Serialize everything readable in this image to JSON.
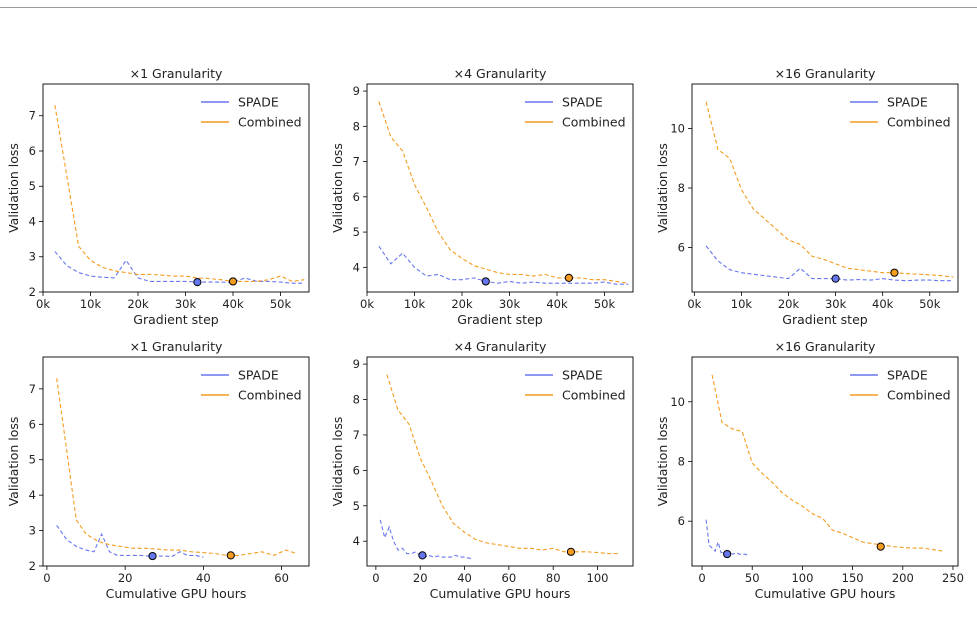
{
  "colors": {
    "spade": "#6677ee",
    "combined": "#f39c1f"
  },
  "chart_data": [
    {
      "type": "line",
      "title": "×1 Granularity",
      "xlabel": "Gradient step",
      "ylabel": "Validation loss",
      "xlim": [
        0,
        56000
      ],
      "ylim": [
        2,
        7.9
      ],
      "xticks": [
        0,
        10000,
        20000,
        30000,
        40000,
        50000
      ],
      "xtick_labels": [
        "0k",
        "10k",
        "20k",
        "30k",
        "40k",
        "50k"
      ],
      "yticks": [
        2,
        3,
        4,
        5,
        6,
        7
      ],
      "ytick_labels": [
        "2",
        "3",
        "4",
        "5",
        "6",
        "7"
      ],
      "legend": "top-right",
      "series": [
        {
          "name": "SPADE",
          "color": "#6677ee",
          "x": [
            2500,
            5000,
            7500,
            10000,
            12500,
            15000,
            17500,
            20000,
            22500,
            25000,
            27500,
            30000,
            32500,
            35000,
            37500,
            40000,
            42500,
            45000,
            47500,
            50000,
            52500,
            55000
          ],
          "y": [
            3.15,
            2.75,
            2.55,
            2.45,
            2.42,
            2.4,
            2.9,
            2.4,
            2.3,
            2.3,
            2.3,
            2.3,
            2.28,
            2.28,
            2.28,
            2.27,
            2.4,
            2.3,
            2.3,
            2.28,
            2.25,
            2.25
          ],
          "marker": {
            "x": 32500,
            "y": 2.28
          }
        },
        {
          "name": "Combined",
          "color": "#f39c1f",
          "x": [
            2500,
            5000,
            7500,
            10000,
            12500,
            15000,
            17500,
            20000,
            22500,
            25000,
            27500,
            30000,
            32500,
            35000,
            37500,
            40000,
            42500,
            45000,
            47500,
            50000,
            52500,
            55000
          ],
          "y": [
            7.3,
            5.3,
            3.3,
            2.9,
            2.7,
            2.6,
            2.55,
            2.5,
            2.5,
            2.48,
            2.45,
            2.45,
            2.4,
            2.38,
            2.35,
            2.3,
            2.3,
            2.3,
            2.35,
            2.45,
            2.3,
            2.35
          ],
          "marker": {
            "x": 40000,
            "y": 2.3
          }
        }
      ]
    },
    {
      "type": "line",
      "title": "×4 Granularity",
      "xlabel": "Gradient step",
      "ylabel": "Validation loss",
      "xlim": [
        0,
        56000
      ],
      "ylim": [
        3.3,
        9.2
      ],
      "xticks": [
        0,
        10000,
        20000,
        30000,
        40000,
        50000
      ],
      "xtick_labels": [
        "0k",
        "10k",
        "20k",
        "30k",
        "40k",
        "50k"
      ],
      "yticks": [
        4,
        5,
        6,
        7,
        8,
        9
      ],
      "ytick_labels": [
        "4",
        "5",
        "6",
        "7",
        "8",
        "9"
      ],
      "legend": "top-right",
      "series": [
        {
          "name": "SPADE",
          "color": "#6677ee",
          "x": [
            2500,
            5000,
            7500,
            10000,
            12500,
            15000,
            17500,
            20000,
            22500,
            25000,
            27500,
            30000,
            32500,
            35000,
            37500,
            40000,
            42500,
            45000,
            47500,
            50000,
            52500,
            55000
          ],
          "y": [
            4.6,
            4.1,
            4.4,
            4.0,
            3.75,
            3.8,
            3.65,
            3.65,
            3.7,
            3.6,
            3.55,
            3.6,
            3.55,
            3.58,
            3.55,
            3.55,
            3.55,
            3.55,
            3.55,
            3.58,
            3.52,
            3.52
          ],
          "marker": {
            "x": 25000,
            "y": 3.6
          }
        },
        {
          "name": "Combined",
          "color": "#f39c1f",
          "x": [
            2500,
            5000,
            7500,
            10000,
            12500,
            15000,
            17500,
            20000,
            22500,
            25000,
            27500,
            30000,
            32500,
            35000,
            37500,
            40000,
            42500,
            45000,
            47500,
            50000,
            52500,
            55000
          ],
          "y": [
            8.7,
            7.7,
            7.3,
            6.35,
            5.7,
            5.0,
            4.5,
            4.25,
            4.05,
            3.95,
            3.85,
            3.8,
            3.8,
            3.75,
            3.8,
            3.7,
            3.7,
            3.7,
            3.65,
            3.65,
            3.6,
            3.55
          ],
          "marker": {
            "x": 42500,
            "y": 3.7
          }
        }
      ]
    },
    {
      "type": "line",
      "title": "×16 Granularity",
      "xlabel": "Gradient step",
      "ylabel": "Validation loss",
      "xlim": [
        -500,
        56000
      ],
      "ylim": [
        4.5,
        11.5
      ],
      "xticks": [
        0,
        10000,
        20000,
        30000,
        40000,
        50000
      ],
      "xtick_labels": [
        "0k",
        "10k",
        "20k",
        "30k",
        "40k",
        "50k"
      ],
      "yticks": [
        6,
        8,
        10
      ],
      "ytick_labels": [
        "6",
        "8",
        "10"
      ],
      "legend": "top-right",
      "series": [
        {
          "name": "SPADE",
          "color": "#6677ee",
          "x": [
            2500,
            5000,
            7500,
            10000,
            12500,
            15000,
            17500,
            20000,
            22500,
            25000,
            27500,
            30000,
            32500,
            35000,
            37500,
            40000,
            42500,
            45000,
            47500,
            50000,
            52500,
            55000
          ],
          "y": [
            6.05,
            5.55,
            5.25,
            5.15,
            5.1,
            5.05,
            5.0,
            4.95,
            5.3,
            4.95,
            4.95,
            4.95,
            4.9,
            4.92,
            4.9,
            4.95,
            4.9,
            4.88,
            4.9,
            4.9,
            4.88,
            4.88
          ],
          "marker": {
            "x": 30000,
            "y": 4.95
          }
        },
        {
          "name": "Combined",
          "color": "#f39c1f",
          "x": [
            2500,
            5000,
            7500,
            10000,
            12500,
            15000,
            17500,
            20000,
            22500,
            25000,
            27500,
            30000,
            32500,
            35000,
            37500,
            40000,
            42500,
            45000,
            47500,
            50000,
            52500,
            55000
          ],
          "y": [
            10.9,
            9.3,
            9.0,
            7.95,
            7.3,
            6.95,
            6.6,
            6.25,
            6.1,
            5.7,
            5.6,
            5.45,
            5.3,
            5.25,
            5.2,
            5.15,
            5.15,
            5.12,
            5.1,
            5.08,
            5.05,
            5.0
          ],
          "marker": {
            "x": 42500,
            "y": 5.15
          }
        }
      ]
    },
    {
      "type": "line",
      "title": "×1 Granularity",
      "xlabel": "Cumulative GPU hours",
      "ylabel": "Validation loss",
      "xlim": [
        -1,
        67
      ],
      "ylim": [
        2,
        7.9
      ],
      "xticks": [
        0,
        20,
        40,
        60
      ],
      "xtick_labels": [
        "0",
        "20",
        "40",
        "60"
      ],
      "yticks": [
        2,
        3,
        4,
        5,
        6,
        7
      ],
      "ytick_labels": [
        "2",
        "3",
        "4",
        "5",
        "6",
        "7"
      ],
      "legend": "top-right",
      "series": [
        {
          "name": "SPADE",
          "color": "#6677ee",
          "x": [
            2.5,
            5,
            7.5,
            10,
            12,
            14,
            16,
            18,
            20,
            22,
            24,
            26,
            28,
            30,
            32,
            34,
            36,
            38,
            40
          ],
          "y": [
            3.15,
            2.75,
            2.55,
            2.45,
            2.4,
            2.9,
            2.4,
            2.3,
            2.3,
            2.3,
            2.3,
            2.28,
            2.28,
            2.28,
            2.27,
            2.4,
            2.3,
            2.3,
            2.25
          ],
          "marker": {
            "x": 27,
            "y": 2.28
          }
        },
        {
          "name": "Combined",
          "color": "#f39c1f",
          "x": [
            2.5,
            5,
            7.5,
            10,
            13,
            16,
            19,
            22,
            25,
            28,
            31,
            34,
            37,
            40,
            43,
            46,
            49,
            52,
            55,
            58,
            61,
            64
          ],
          "y": [
            7.3,
            5.3,
            3.3,
            2.9,
            2.7,
            2.6,
            2.55,
            2.5,
            2.5,
            2.48,
            2.45,
            2.45,
            2.4,
            2.38,
            2.35,
            2.3,
            2.3,
            2.35,
            2.4,
            2.3,
            2.45,
            2.35
          ],
          "marker": {
            "x": 47,
            "y": 2.3
          }
        }
      ]
    },
    {
      "type": "line",
      "title": "×4 Granularity",
      "xlabel": "Cumulative GPU hours",
      "ylabel": "Validation loss",
      "xlim": [
        -4,
        116
      ],
      "ylim": [
        3.3,
        9.2
      ],
      "xticks": [
        0,
        20,
        40,
        60,
        80,
        100
      ],
      "xtick_labels": [
        "0",
        "20",
        "40",
        "60",
        "80",
        "100"
      ],
      "yticks": [
        4,
        5,
        6,
        7,
        8,
        9
      ],
      "ytick_labels": [
        "4",
        "5",
        "6",
        "7",
        "8",
        "9"
      ],
      "legend": "top-right",
      "series": [
        {
          "name": "SPADE",
          "color": "#6677ee",
          "x": [
            2,
            4,
            6,
            8,
            10,
            12,
            14,
            16,
            18,
            20,
            22,
            24,
            26,
            28,
            30,
            32,
            34,
            36,
            38,
            40,
            42,
            44
          ],
          "y": [
            4.6,
            4.1,
            4.4,
            4.0,
            3.75,
            3.8,
            3.65,
            3.65,
            3.7,
            3.6,
            3.55,
            3.6,
            3.55,
            3.58,
            3.55,
            3.55,
            3.55,
            3.6,
            3.55,
            3.55,
            3.52,
            3.52
          ],
          "marker": {
            "x": 21,
            "y": 3.6
          }
        },
        {
          "name": "Combined",
          "color": "#f39c1f",
          "x": [
            5,
            10,
            15,
            20,
            25,
            30,
            35,
            40,
            45,
            50,
            55,
            60,
            65,
            70,
            75,
            80,
            85,
            90,
            95,
            100,
            105,
            110
          ],
          "y": [
            8.7,
            7.7,
            7.3,
            6.35,
            5.7,
            5.0,
            4.5,
            4.25,
            4.05,
            3.95,
            3.9,
            3.85,
            3.8,
            3.8,
            3.75,
            3.8,
            3.7,
            3.7,
            3.7,
            3.68,
            3.65,
            3.65
          ],
          "marker": {
            "x": 88,
            "y": 3.7
          }
        }
      ]
    },
    {
      "type": "line",
      "title": "×16 Granularity",
      "xlabel": "Cumulative GPU hours",
      "ylabel": "Validation loss",
      "xlim": [
        -10,
        255
      ],
      "ylim": [
        4.5,
        11.5
      ],
      "xticks": [
        0,
        50,
        100,
        150,
        200,
        250
      ],
      "xtick_labels": [
        "0",
        "50",
        "100",
        "150",
        "200",
        "250"
      ],
      "yticks": [
        6,
        8,
        10
      ],
      "ytick_labels": [
        "6",
        "8",
        "10"
      ],
      "legend": "top-right",
      "series": [
        {
          "name": "SPADE",
          "color": "#6677ee",
          "x": [
            4,
            7,
            10,
            13,
            16,
            19,
            22,
            25,
            28,
            31,
            34,
            37,
            40,
            43,
            46
          ],
          "y": [
            6.05,
            5.2,
            5.1,
            5.0,
            5.3,
            4.95,
            4.95,
            4.9,
            4.92,
            4.9,
            4.95,
            4.9,
            4.88,
            4.9,
            4.85
          ],
          "marker": {
            "x": 25,
            "y": 4.9
          }
        },
        {
          "name": "Combined",
          "color": "#f39c1f",
          "x": [
            10,
            20,
            30,
            40,
            50,
            60,
            70,
            80,
            90,
            100,
            110,
            120,
            130,
            140,
            150,
            160,
            170,
            180,
            190,
            200,
            210,
            220,
            230,
            240
          ],
          "y": [
            10.9,
            9.3,
            9.1,
            9.0,
            7.95,
            7.6,
            7.3,
            6.95,
            6.7,
            6.5,
            6.25,
            6.1,
            5.7,
            5.6,
            5.45,
            5.3,
            5.25,
            5.2,
            5.15,
            5.12,
            5.1,
            5.1,
            5.05,
            5.0
          ],
          "marker": {
            "x": 178,
            "y": 5.15
          }
        }
      ]
    }
  ]
}
